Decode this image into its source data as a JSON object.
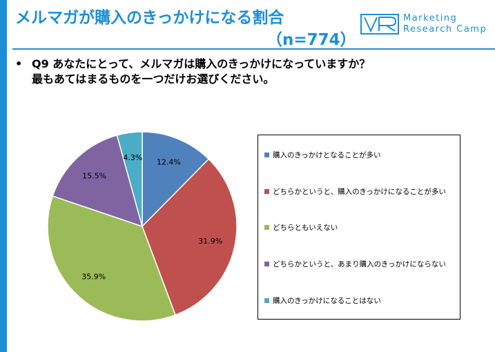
{
  "header": {
    "title": "メルマガが購入のきっかけになる割合",
    "subtitle": "（n=774）"
  },
  "logo": {
    "line1": "Marketing",
    "line2": "Research Camp",
    "mark_color": "#1a8fd6"
  },
  "question": {
    "bullet": "•",
    "line1": "Q9 あなたにとって、メルマガは購入のきっかけになっていますか？",
    "line2": "最もあてはまるものを一つだけお選びください。"
  },
  "chart_data": {
    "type": "pie",
    "unit": "%",
    "slices": [
      {
        "label": "購入のきっかけとなることが多い",
        "value": 12.4,
        "display": "12.4%",
        "color": "#4f81bd"
      },
      {
        "label": "どちらかというと、購入のきっかけになることが多い",
        "value": 31.9,
        "display": "31.9%",
        "color": "#c0504d"
      },
      {
        "label": "どちらともいえない",
        "value": 35.9,
        "display": "35.9%",
        "color": "#9bbb59"
      },
      {
        "label": "どちらかというと、あまり購入のきっかけにならない",
        "value": 15.5,
        "display": "15.5%",
        "color": "#8064a2"
      },
      {
        "label": "購入のきっかけになることはない",
        "value": 4.3,
        "display": "4.3%",
        "color": "#4bacc6"
      }
    ],
    "start_angle_deg": 0,
    "direction": "clockwise",
    "legend_position": "right"
  }
}
